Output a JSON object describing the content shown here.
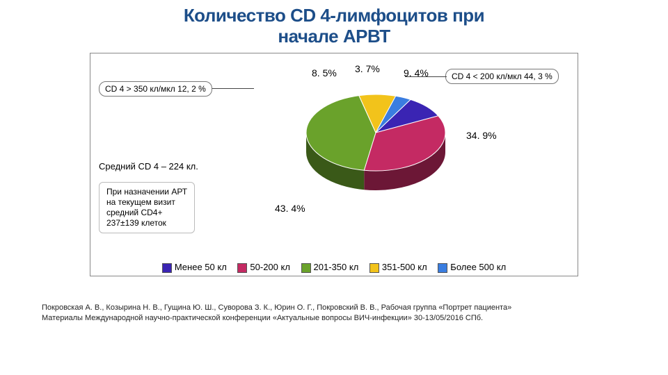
{
  "title_line1": "Количество CD 4-лимфоцитов при",
  "title_line2": "начале АРВТ",
  "chart": {
    "type": "pie",
    "slices": [
      {
        "key": "lt50",
        "label": "Менее 50 кл",
        "value": 9.4,
        "color": "#3a24b3",
        "pct_text": "9. 4%"
      },
      {
        "key": "50_200",
        "label": "50-200 кл",
        "value": 34.9,
        "color": "#c42a63",
        "pct_text": "34. 9%"
      },
      {
        "key": "201_350",
        "label": "201-350 кл",
        "value": 43.4,
        "color": "#6aa22b",
        "pct_text": "43. 4%"
      },
      {
        "key": "351_500",
        "label": "351-500 кл",
        "value": 8.5,
        "color": "#f2c31b",
        "pct_text": "8. 5%"
      },
      {
        "key": "gt500",
        "label": "Более 500 кл",
        "value": 3.7,
        "color": "#3a7de0",
        "pct_text": "3. 7%"
      }
    ],
    "radius": 100,
    "depth": 28,
    "tilt": 0.55,
    "start_angle_deg": -60,
    "background_color": "#ffffff",
    "legend_border": "#555555"
  },
  "callouts": {
    "left": "CD 4 > 350 кл/мкл 12, 2 %",
    "right": "CD 4 < 200 кл/мкл  44, 3 %"
  },
  "avg_line": "Средний CD 4 – 224 кл.",
  "infobox_lines": [
    "При назначении АРТ",
    "на текущем визит",
    "средний CD4+",
    "237±139 клеток"
  ],
  "citation_line1": "Покровская А. В., Козырина Н. В., Гущина Ю. Ш., Суворова З. К., Юрин О. Г., Покровский В. В., Рабочая группа «Портрет пациента»",
  "citation_line2": "Материалы Международной научно-практической конференции «Актуальные вопросы ВИЧ-инфекции» 30-13/05/2016 СПб."
}
